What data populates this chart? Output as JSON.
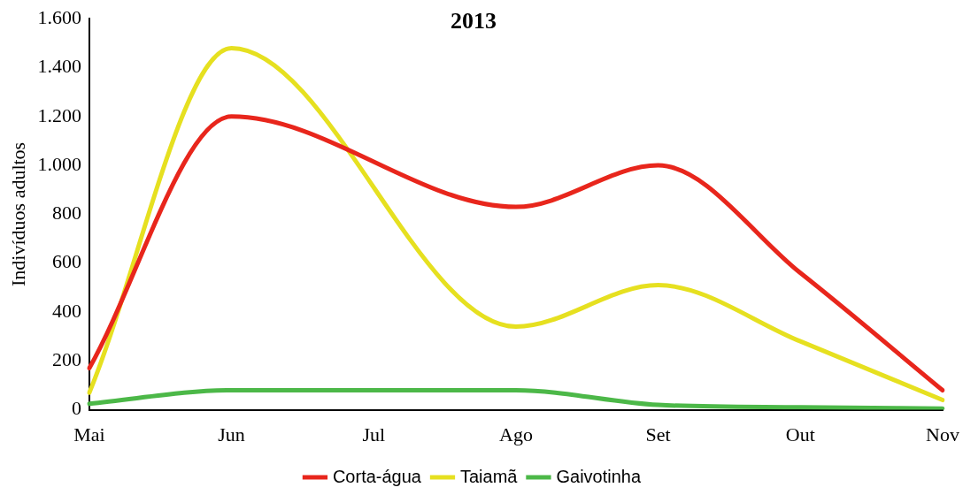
{
  "chart_data": {
    "type": "line",
    "title": "2013",
    "ylabel": "Indivíduos adultos",
    "categories": [
      "Mai",
      "Jun",
      "Jul",
      "Ago",
      "Set",
      "Out",
      "Nov"
    ],
    "series": [
      {
        "name": "Corta-água",
        "color": "#e8261c",
        "values": [
          170,
          1200,
          null,
          830,
          1000,
          560,
          80
        ]
      },
      {
        "name": "Taiamã",
        "color": "#e6e020",
        "values": [
          70,
          1480,
          null,
          340,
          510,
          280,
          40
        ]
      },
      {
        "name": "Gaivotinha",
        "color": "#4cb848",
        "values": [
          25,
          80,
          null,
          80,
          20,
          10,
          5
        ]
      }
    ],
    "ylim": [
      0,
      1600
    ],
    "yticks": [
      {
        "value": 0,
        "label": "0"
      },
      {
        "value": 200,
        "label": "200"
      },
      {
        "value": 400,
        "label": "400"
      },
      {
        "value": 600,
        "label": "600"
      },
      {
        "value": 800,
        "label": "800"
      },
      {
        "value": 1000,
        "label": "1.000"
      },
      {
        "value": 1200,
        "label": "1.200"
      },
      {
        "value": 1400,
        "label": "1.400"
      },
      {
        "value": 1600,
        "label": "1.600"
      }
    ],
    "grid": false,
    "legend": "bottom",
    "marker": "none"
  }
}
